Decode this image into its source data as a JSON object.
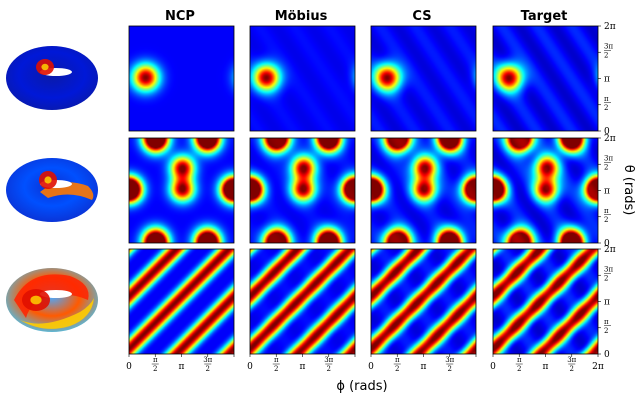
{
  "figure": {
    "column_titles": [
      "NCP",
      "Möbius",
      "CS",
      "Target"
    ],
    "x_axis_label": "ϕ (rads)",
    "y_axis_label": "θ (rads)",
    "x_ticks": [
      "0",
      "π/2",
      "π",
      "3π/2",
      "2π"
    ],
    "y_ticks": [
      "0",
      "π/2",
      "π",
      "3π/2",
      "2π"
    ]
  },
  "chart_data": {
    "type": "heatmap",
    "colormap": "jet",
    "rows": [
      {
        "pattern": "single-gaussian",
        "peaks": [
          [
            1.0,
            3.2
          ]
        ],
        "sigma": 0.55
      },
      {
        "pattern": "multi-gaussian",
        "peaks": [
          [
            0.05,
            3.2
          ],
          [
            3.2,
            3.2
          ],
          [
            6.23,
            3.2
          ],
          [
            1.6,
            6.1
          ],
          [
            1.6,
            0.2
          ],
          [
            4.7,
            6.1
          ],
          [
            4.7,
            0.2
          ],
          [
            3.2,
            4.5
          ]
        ],
        "sigma": 0.5
      },
      {
        "pattern": "diagonal-bands",
        "frequency": 2
      }
    ],
    "x_range": [
      0,
      6.2832
    ],
    "y_range": [
      0,
      6.2832
    ]
  }
}
